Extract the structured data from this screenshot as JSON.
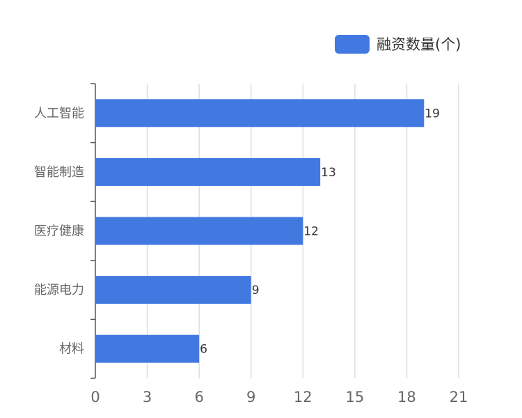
{
  "chart_data": {
    "type": "bar",
    "orientation": "horizontal",
    "categories": [
      "人工智能",
      "智能制造",
      "医疗健康",
      "能源电力",
      "材料"
    ],
    "series": [
      {
        "name": "融资数量(个)",
        "values": [
          19,
          13,
          12,
          9,
          6
        ],
        "color": "#4279e0"
      }
    ],
    "xlim": [
      0,
      21
    ],
    "xticks": [
      0,
      3,
      6,
      9,
      12,
      15,
      18,
      21
    ],
    "grid": "vertical",
    "legend_position": "top-right",
    "data_labels": true
  },
  "colors": {
    "bar": "#4279e0",
    "grid": "#d9dee6",
    "axis": "#555555",
    "label": "#666666"
  }
}
